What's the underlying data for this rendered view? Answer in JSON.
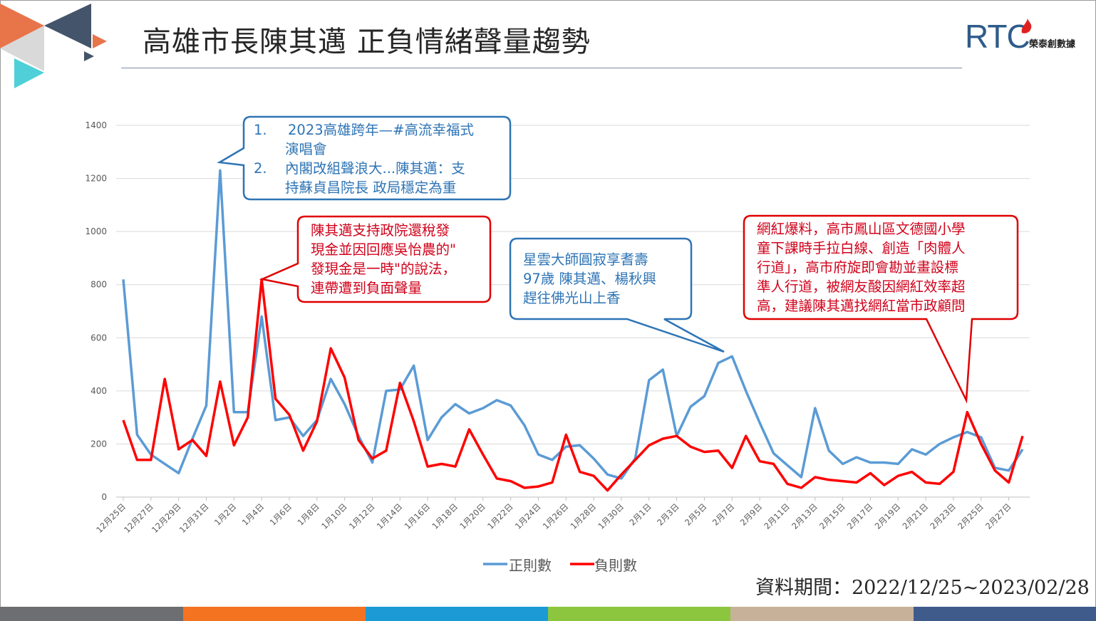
{
  "title": "高雄市長陳其邁 正負情緒聲量趨勢",
  "logo": {
    "letters": "RTC",
    "sub": "榮泰創數據"
  },
  "period_text": "資料期間：2022/12/25~2023/02/28",
  "colors": {
    "positive": "#5b9bd5",
    "negative": "#ff0000",
    "callout_blue": "#2e74b5",
    "callout_red": "#e00000"
  },
  "callouts": {
    "blue1": {
      "num1": "1.",
      "line1": "2023高雄跨年—#高流幸福式",
      "line2": "演唱會",
      "num2": "2.",
      "line3": "內閣改組聲浪大...陳其邁：支",
      "line4": "持蘇貞昌院長 政局穩定為重"
    },
    "red1": {
      "text": "陳其邁支持政院還稅發\n現金並因回應吳怡農的\"\n發現金是一時\"的說法，\n連帶遭到負面聲量"
    },
    "blue2": {
      "text": "星雲大師圓寂享耆壽\n97歲 陳其邁、楊秋興\n趕往佛光山上香"
    },
    "red2": {
      "text": "網紅爆料，高市鳳山區文德國小學\n童下課時手拉白線、創造「肉體人\n行道」，高市府旋即會勘並畫設標\n準人行道，被網友酸因網紅效率超\n高，建議陳其邁找網紅當市政顧問"
    }
  },
  "bottom_bar_colors": [
    "#6d6e71",
    "#f47321",
    "#1c9ad6",
    "#8cc63f",
    "#c7b299",
    "#3f5b8c"
  ],
  "chart_data": {
    "type": "line",
    "ylim": [
      0,
      1400
    ],
    "yticks": [
      0,
      200,
      400,
      600,
      800,
      1000,
      1200,
      1400
    ],
    "x": [
      "12月25日",
      "12月26日",
      "12月27日",
      "12月28日",
      "12月29日",
      "12月30日",
      "12月31日",
      "1月1日",
      "1月2日",
      "1月3日",
      "1月4日",
      "1月5日",
      "1月6日",
      "1月7日",
      "1月8日",
      "1月9日",
      "1月10日",
      "1月11日",
      "1月12日",
      "1月13日",
      "1月14日",
      "1月15日",
      "1月16日",
      "1月17日",
      "1月18日",
      "1月19日",
      "1月20日",
      "1月21日",
      "1月22日",
      "1月23日",
      "1月24日",
      "1月25日",
      "1月26日",
      "1月27日",
      "1月28日",
      "1月29日",
      "1月30日",
      "1月31日",
      "2月1日",
      "2月2日",
      "2月3日",
      "2月4日",
      "2月5日",
      "2月6日",
      "2月7日",
      "2月8日",
      "2月9日",
      "2月10日",
      "2月11日",
      "2月12日",
      "2月13日",
      "2月14日",
      "2月15日",
      "2月16日",
      "2月17日",
      "2月18日",
      "2月19日",
      "2月20日",
      "2月21日",
      "2月22日",
      "2月23日",
      "2月24日",
      "2月25日",
      "2月26日",
      "2月27日",
      "2月28日"
    ],
    "xtick_labels": [
      "12月25日",
      "12月27日",
      "12月29日",
      "12月31日",
      "1月2日",
      "1月4日",
      "1月6日",
      "1月8日",
      "1月10日",
      "1月12日",
      "1月14日",
      "1月16日",
      "1月18日",
      "1月20日",
      "1月22日",
      "1月24日",
      "1月26日",
      "1月28日",
      "1月30日",
      "2月1日",
      "2月3日",
      "2月5日",
      "2月7日",
      "2月9日",
      "2月11日",
      "2月13日",
      "2月15日",
      "2月17日",
      "2月19日",
      "2月21日",
      "2月23日",
      "2月25日",
      "2月27日"
    ],
    "series": [
      {
        "name": "正則數",
        "values": [
          820,
          235,
          160,
          125,
          90,
          220,
          345,
          1230,
          320,
          320,
          680,
          290,
          300,
          230,
          290,
          445,
          350,
          230,
          130,
          400,
          405,
          495,
          215,
          300,
          350,
          315,
          335,
          365,
          345,
          270,
          160,
          140,
          190,
          195,
          145,
          85,
          70,
          145,
          440,
          480,
          230,
          340,
          380,
          505,
          530,
          400,
          280,
          165,
          120,
          75,
          335,
          175,
          125,
          150,
          130,
          130,
          125,
          180,
          160,
          200,
          225,
          245,
          225,
          110,
          100,
          180
        ]
      },
      {
        "name": "負則數",
        "values": [
          290,
          140,
          140,
          445,
          180,
          215,
          155,
          435,
          195,
          300,
          820,
          370,
          310,
          175,
          285,
          560,
          450,
          215,
          145,
          175,
          430,
          285,
          115,
          125,
          115,
          255,
          160,
          70,
          60,
          35,
          40,
          55,
          235,
          95,
          80,
          25,
          85,
          140,
          195,
          220,
          230,
          190,
          170,
          175,
          110,
          230,
          135,
          125,
          50,
          35,
          75,
          65,
          60,
          55,
          90,
          45,
          80,
          95,
          55,
          50,
          95,
          320,
          200,
          100,
          55,
          230
        ]
      }
    ],
    "legend": "bottom-center"
  }
}
